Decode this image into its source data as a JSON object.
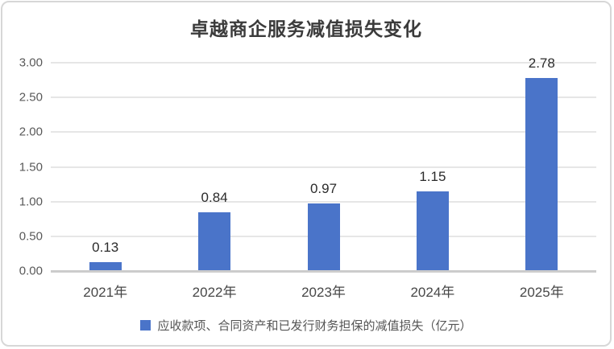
{
  "chart_data": {
    "type": "bar",
    "title": "卓越商企服务减值损失变化",
    "categories": [
      "2021年",
      "2022年",
      "2023年",
      "2024年",
      "2025年"
    ],
    "series": [
      {
        "name": "应收款项、合同资产和已发行财务担保的减值损失（亿元）",
        "values": [
          0.13,
          0.84,
          0.97,
          1.15,
          2.78
        ],
        "value_labels": [
          "0.13",
          "0.84",
          "0.97",
          "1.15",
          "2.78"
        ]
      }
    ],
    "xlabel": "",
    "ylabel": "",
    "ylim": [
      0,
      3
    ],
    "ytick_step": 0.5,
    "ytick_labels": [
      "0.00",
      "0.50",
      "1.00",
      "1.50",
      "2.00",
      "2.50",
      "3.00"
    ],
    "grid": true,
    "legend_position": "bottom",
    "colors": {
      "bar": "#4a74c9",
      "gridline": "#e6e6e6",
      "axis_line": "#cccccc",
      "title_text": "#3b3b3b",
      "tick_text": "#595959",
      "card_border": "#d7d7d7"
    }
  }
}
